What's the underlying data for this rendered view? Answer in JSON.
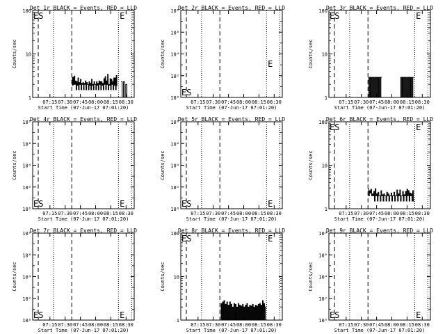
{
  "figure": {
    "x_ticks": [
      "07:15",
      "07:30",
      "07:45",
      "08:00",
      "08:15",
      "08:30"
    ],
    "xlabel": "Start Time (07-Jun-17 07:01:20)",
    "ylabel": "Counts/sec"
  },
  "chart_data": [
    {
      "type": "line",
      "title": "Det 1r BLACK = Events, RED = LLD",
      "yscale": "log",
      "ylim": [
        1,
        100
      ],
      "y_ticks": [
        "1",
        "10",
        "100"
      ],
      "markers": [
        "ES",
        "E"
      ],
      "series": [
        {
          "name": "Events",
          "color": "#000000",
          "segments": [
            {
              "start": 0.385,
              "end": 0.835,
              "values": [
                2.9,
                1.9,
                2.9,
                2.0,
                3.1,
                2.0,
                2.4,
                1.5,
                2.3,
                1.9,
                2.8,
                1.5,
                2.2,
                2.0,
                2.6,
                1.5,
                2.1,
                2.0,
                2.2,
                1.5,
                2.1,
                2.0,
                2.4,
                1.5,
                2.2,
                2.0,
                2.0,
                1.5,
                2.3,
                1.9,
                2.1,
                1.5,
                2.6,
                1.9,
                2.0,
                1.5,
                2.3,
                2.0,
                2.0,
                1.5,
                2.3,
                1.9,
                2.1,
                1.5,
                2.4,
                2.0,
                2.3,
                1.5,
                2.3,
                1.9,
                2.1,
                1.5,
                2.7,
                2.0,
                3.0,
                1.5,
                2.4,
                2.0,
                3.4,
                1.5,
                2.0,
                1.9,
                2.7,
                1.5,
                2.6,
                2.0,
                2.3,
                1.5,
                2.8,
                1.9,
                2.8,
                1.5,
                3.2,
                1.9
              ]
            },
            {
              "start": 0.87,
              "end": 0.94,
              "values": [
                2.3,
                1.0,
                2.3,
                1.0,
                2.0,
                1.0
              ]
            }
          ]
        }
      ]
    },
    {
      "type": "line",
      "title": "Det 2r BLACK = Events, RED = LLD",
      "yscale": "log",
      "ylim": [
        1,
        100000000
      ],
      "y_ticks": [
        "10⁰",
        "10²",
        "10⁴",
        "10⁶",
        "10⁸"
      ],
      "markers": [
        "ES",
        "E"
      ],
      "series": []
    },
    {
      "type": "line",
      "title": "Det 3r BLACK = Events, RED = LLD",
      "yscale": "log",
      "ylim": [
        1,
        100
      ],
      "y_ticks": [
        "1",
        "10",
        "100"
      ],
      "markers": [
        "ES",
        "E"
      ],
      "series": [
        {
          "name": "Events",
          "color": "#000000",
          "segments": [
            {
              "start": 0.385,
              "end": 0.52,
              "values": [
                1,
                2.9,
                1,
                2.9,
                1,
                2.9,
                1,
                2.9,
                1,
                2.9,
                1,
                2.9,
                1,
                2.9,
                1,
                2.9,
                1,
                2.9
              ]
            },
            {
              "start": 0.7,
              "end": 0.835,
              "values": [
                1,
                2.9,
                1,
                2.9,
                1,
                2.9,
                1,
                2.9,
                1,
                2.9,
                1,
                2.9,
                1,
                2.9,
                1,
                2.9,
                1,
                2.9
              ]
            }
          ]
        }
      ]
    },
    {
      "type": "line",
      "title": "Det 4r BLACK = Events, RED = LLD",
      "yscale": "log",
      "ylim": [
        1,
        100000000
      ],
      "y_ticks": [
        "10⁰",
        "10²",
        "10⁴",
        "10⁶",
        "10⁸"
      ],
      "markers": [
        "ES",
        "E"
      ],
      "series": []
    },
    {
      "type": "line",
      "title": "Det 5r BLACK = Events, RED = LLD",
      "yscale": "log",
      "ylim": [
        1,
        100000000
      ],
      "y_ticks": [
        "10⁰",
        "10²",
        "10⁴",
        "10⁶",
        "10⁸"
      ],
      "markers": [
        "ES",
        "E"
      ],
      "series": []
    },
    {
      "type": "line",
      "title": "Det 6r BLACK = Events, RED = LLD",
      "yscale": "log",
      "ylim": [
        1,
        100
      ],
      "y_ticks": [
        "1",
        "10",
        "100"
      ],
      "markers": [
        "ES",
        "E"
      ],
      "series": [
        {
          "name": "Events",
          "color": "#000000",
          "segments": [
            {
              "start": 0.385,
              "end": 0.84,
              "values": [
                2.9,
                2.0,
                2.6,
                2.3,
                2.8,
                2.0,
                2.2,
                2.0,
                2.5,
                1.5,
                2.9,
                2.0,
                2.2,
                1.5,
                2.4,
                2.0,
                2.0,
                1.5,
                2.6,
                2.0,
                2.1,
                1.5,
                2.2,
                2.0,
                2.0,
                1.5,
                2.4,
                2.0,
                2.2,
                1.5,
                2.0,
                2.0,
                2.3,
                1.5,
                2.0,
                2.0,
                2.4,
                1.5,
                2.0,
                2.0,
                2.7,
                1.5,
                2.2,
                2.0,
                2.7,
                1.5,
                2.0,
                2.0,
                2.5,
                1.5,
                2.1,
                2.0,
                2.5,
                1.5,
                2.8,
                2.0,
                2.6,
                1.5,
                2.3,
                2.0,
                2.2,
                1.5,
                2.6,
                1.5
              ]
            }
          ]
        }
      ]
    },
    {
      "type": "line",
      "title": "Det 7r BLACK = Events, RED = LLD",
      "yscale": "log",
      "ylim": [
        1,
        100000000
      ],
      "y_ticks": [
        "10⁰",
        "10²",
        "10⁴",
        "10⁶",
        "10⁸"
      ],
      "markers": [
        "ES",
        "E"
      ],
      "series": []
    },
    {
      "type": "line",
      "title": "Det 8r BLACK = Events, RED = LLD",
      "yscale": "log",
      "ylim": [
        1,
        100
      ],
      "y_ticks": [
        "1",
        "10",
        "100"
      ],
      "markers": [
        "ES",
        "E"
      ],
      "series": [
        {
          "name": "Events",
          "color": "#000000",
          "segments": [
            {
              "start": 0.39,
              "end": 0.84,
              "values": [
                1,
                2.4,
                1,
                2.6,
                1,
                2.8,
                1,
                2.3,
                1,
                2.6,
                1,
                2.2,
                1,
                2.6,
                1,
                2.3,
                1,
                2.0,
                1,
                2.4,
                1,
                2.3,
                1,
                2.0,
                1,
                2.4,
                1,
                2.2,
                1,
                2.1,
                1,
                2.3,
                1,
                2.0,
                1,
                2.2,
                1,
                2.4,
                1,
                2.0,
                1,
                2.2,
                1,
                2.1,
                1,
                2.3,
                1,
                2.0,
                1,
                2.2,
                1,
                2.1,
                1,
                2.3,
                1,
                2.4,
                1,
                2.2,
                1,
                2.8,
                1,
                2.4,
                1,
                2.0
              ]
            }
          ]
        }
      ]
    },
    {
      "type": "line",
      "title": "Det 9r BLACK = Events, RED = LLD",
      "yscale": "log",
      "ylim": [
        1,
        100000000
      ],
      "y_ticks": [
        "10⁰",
        "10²",
        "10⁴",
        "10⁶",
        "10⁸"
      ],
      "markers": [
        "ES",
        "E"
      ],
      "series": []
    }
  ]
}
